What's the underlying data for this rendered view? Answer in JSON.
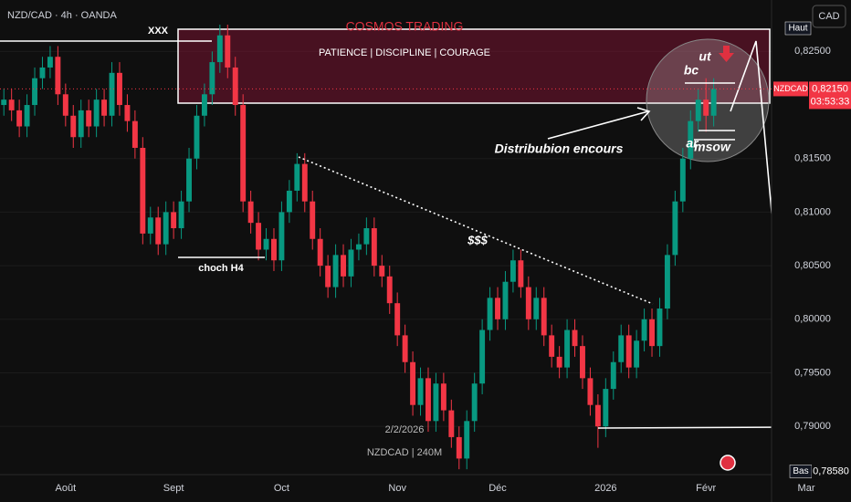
{
  "chart_data": {
    "type": "candlestick",
    "title": "NZD/CAD · 4h · OANDA",
    "currency": "CAD",
    "categories": [
      null,
      null,
      null,
      null,
      null,
      null,
      null,
      null,
      "Août",
      null,
      null,
      null,
      null,
      null,
      null,
      null,
      null,
      null,
      null,
      null,
      null,
      null,
      "Sept",
      null,
      null,
      null,
      null,
      null,
      null,
      null,
      null,
      null,
      null,
      null,
      null,
      null,
      "Oct",
      null,
      null,
      null,
      null,
      null,
      null,
      null,
      null,
      null,
      null,
      null,
      null,
      null,
      null,
      "Nov",
      null,
      null,
      null,
      null,
      null,
      null,
      null,
      null,
      null,
      null,
      null,
      null,
      "Déc",
      null,
      null,
      null,
      null,
      null,
      null,
      null,
      null,
      null,
      null,
      null,
      null,
      null,
      "2026",
      null,
      null,
      null,
      null,
      null,
      null,
      null,
      null,
      null,
      null,
      null,
      null,
      "Févr",
      null,
      null,
      null,
      null,
      null,
      null,
      null,
      null,
      null,
      null,
      null,
      null,
      "Mar"
    ],
    "open": [
      0.82,
      0.8205,
      0.8195,
      0.818,
      0.82,
      0.8225,
      0.8235,
      0.8245,
      0.821,
      0.819,
      0.817,
      0.8195,
      0.818,
      0.8205,
      0.819,
      0.823,
      0.82,
      0.8185,
      0.816,
      0.808,
      0.8095,
      0.807,
      0.81,
      0.8085,
      0.811,
      0.815,
      0.819,
      0.821,
      0.824,
      0.8265,
      0.8235,
      0.82,
      0.811,
      0.809,
      0.8065,
      0.8075,
      0.8055,
      0.81,
      0.812,
      0.8145,
      0.811,
      0.8075,
      0.805,
      0.803,
      0.806,
      0.804,
      0.8065,
      0.807,
      0.8085,
      0.805,
      0.804,
      0.8015,
      0.7985,
      0.796,
      0.792,
      0.7945,
      0.7905,
      0.794,
      0.7915,
      0.789,
      0.787,
      0.7905,
      0.794,
      0.799,
      0.802,
      0.8,
      0.8035,
      0.8055,
      0.803,
      0.8,
      0.802,
      0.7985,
      0.7965,
      0.7955,
      0.799,
      0.7975,
      0.7945,
      0.792,
      0.79,
      0.7935,
      0.796,
      0.7985,
      0.7955,
      0.798,
      0.8,
      0.7975,
      0.801,
      0.806,
      0.811,
      0.815,
      0.8185,
      0.8205,
      0.819,
      null,
      null,
      null,
      null,
      null,
      null,
      null,
      null,
      null,
      null,
      null,
      null
    ],
    "high": [
      0.8215,
      0.8215,
      0.8205,
      0.821,
      0.8235,
      0.8245,
      0.8255,
      0.8255,
      0.822,
      0.82,
      0.8205,
      0.8205,
      0.8215,
      0.8215,
      0.824,
      0.824,
      0.821,
      0.8195,
      0.817,
      0.8105,
      0.8105,
      0.811,
      0.811,
      0.812,
      0.816,
      0.82,
      0.822,
      0.825,
      0.8275,
      0.8275,
      0.8245,
      0.821,
      0.812,
      0.81,
      0.8085,
      0.8085,
      0.811,
      0.813,
      0.8155,
      0.8155,
      0.812,
      0.8085,
      0.806,
      0.807,
      0.807,
      0.8075,
      0.808,
      0.8095,
      0.8095,
      0.806,
      0.805,
      0.8025,
      0.7995,
      0.797,
      0.7955,
      0.7955,
      0.795,
      0.795,
      0.7925,
      0.79,
      0.7915,
      0.795,
      0.8,
      0.803,
      0.803,
      0.8045,
      0.8065,
      0.8065,
      0.804,
      0.803,
      0.803,
      0.7995,
      0.7975,
      0.8,
      0.8,
      0.7985,
      0.7955,
      0.793,
      0.7945,
      0.797,
      0.7995,
      0.7995,
      0.799,
      0.801,
      0.801,
      0.802,
      0.807,
      0.812,
      0.816,
      0.8195,
      0.8215,
      0.8225,
      0.8225,
      null,
      null,
      null,
      null,
      null,
      null,
      null,
      null,
      null,
      null,
      null,
      null
    ],
    "low": [
      0.819,
      0.8185,
      0.817,
      0.817,
      0.819,
      0.8215,
      0.8225,
      0.82,
      0.818,
      0.816,
      0.816,
      0.817,
      0.817,
      0.818,
      0.818,
      0.819,
      0.8175,
      0.815,
      0.807,
      0.807,
      0.806,
      0.806,
      0.8075,
      0.8075,
      0.81,
      0.814,
      0.818,
      0.82,
      0.823,
      0.8225,
      0.819,
      0.81,
      0.808,
      0.8055,
      0.8055,
      0.8045,
      0.8045,
      0.809,
      0.811,
      0.81,
      0.8065,
      0.804,
      0.802,
      0.802,
      0.803,
      0.803,
      0.8055,
      0.806,
      0.804,
      0.803,
      0.8005,
      0.7975,
      0.795,
      0.791,
      0.791,
      0.7895,
      0.7895,
      0.7905,
      0.788,
      0.786,
      0.786,
      0.7895,
      0.793,
      0.798,
      0.799,
      0.799,
      0.8025,
      0.802,
      0.799,
      0.799,
      0.7975,
      0.7955,
      0.7945,
      0.7945,
      0.7965,
      0.7935,
      0.791,
      0.788,
      0.789,
      0.7925,
      0.795,
      0.7945,
      0.7945,
      0.797,
      0.7965,
      0.7965,
      0.8,
      0.805,
      0.81,
      0.814,
      0.8175,
      0.8175,
      0.818,
      null,
      null,
      null,
      null,
      null,
      null,
      null,
      null,
      null,
      null,
      null,
      null
    ],
    "close": [
      0.8205,
      0.8195,
      0.818,
      0.82,
      0.8225,
      0.8235,
      0.8245,
      0.821,
      0.819,
      0.817,
      0.8195,
      0.818,
      0.8205,
      0.819,
      0.823,
      0.82,
      0.8185,
      0.816,
      0.808,
      0.8095,
      0.807,
      0.81,
      0.8085,
      0.811,
      0.815,
      0.819,
      0.821,
      0.824,
      0.8265,
      0.8235,
      0.82,
      0.811,
      0.809,
      0.8065,
      0.8075,
      0.8055,
      0.81,
      0.812,
      0.8145,
      0.811,
      0.8075,
      0.805,
      0.803,
      0.806,
      0.804,
      0.8065,
      0.807,
      0.8085,
      0.805,
      0.804,
      0.8015,
      0.7985,
      0.796,
      0.792,
      0.7945,
      0.7905,
      0.794,
      0.7915,
      0.789,
      0.787,
      0.7905,
      0.794,
      0.799,
      0.802,
      0.8,
      0.8035,
      0.8055,
      0.803,
      0.8,
      0.802,
      0.7985,
      0.7965,
      0.7955,
      0.799,
      0.7975,
      0.7945,
      0.792,
      0.79,
      0.7935,
      0.796,
      0.7985,
      0.7955,
      0.798,
      0.8,
      0.7975,
      0.801,
      0.806,
      0.811,
      0.815,
      0.8185,
      0.8205,
      0.819,
      0.8215,
      null,
      null,
      null,
      null,
      null,
      null,
      null,
      null,
      null,
      null,
      null,
      null
    ],
    "up_color": "#089981",
    "down_color": "#f23645",
    "ylim": [
      0.7855,
      0.8298
    ],
    "yticks": [
      {
        "value": 0.825,
        "label": "0,82500"
      },
      {
        "value": 0.815,
        "label": "0,81500"
      },
      {
        "value": 0.81,
        "label": "0,81000"
      },
      {
        "value": 0.805,
        "label": "0,80500"
      },
      {
        "value": 0.8,
        "label": "0,80000"
      },
      {
        "value": 0.795,
        "label": "0,79500"
      },
      {
        "value": 0.79,
        "label": "0,79000"
      }
    ],
    "grid": true,
    "price_tags": [
      {
        "name": "NZDCAD",
        "value": 0.8215,
        "label": "0,82150",
        "countdown": "03:53:33",
        "color": "#f23645"
      },
      {
        "name": "Bas",
        "value": 0.7858,
        "label": "0,78580",
        "color": "#131722"
      }
    ],
    "annotations": {
      "high_label": "Haut",
      "brand": "COSMOS TRADING",
      "motto": "PATIENCE  |  DISCIPLINE  |  COURAGE",
      "xxx": "XXX",
      "choch": "choch H4",
      "distribution": "Distribubion encours",
      "liquidity": "$$$",
      "date": "2/2/2026",
      "symbol": "NZDCAD | 240M",
      "bc": "bc",
      "ut": "ut",
      "ar": "ar",
      "msow": "msow"
    }
  }
}
